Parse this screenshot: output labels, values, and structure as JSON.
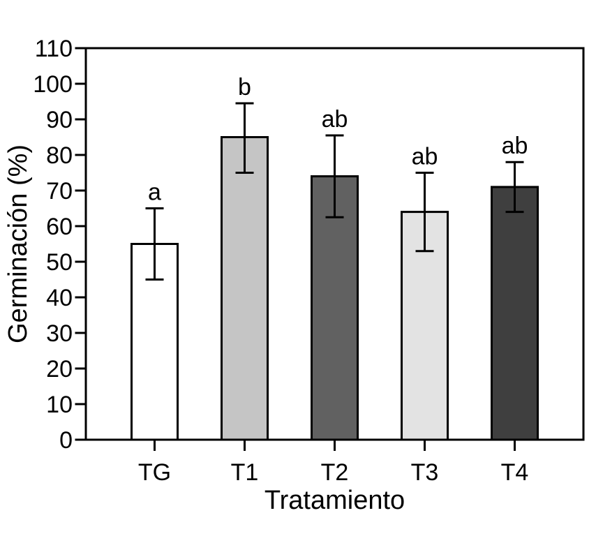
{
  "figure": {
    "background": "#ffffff",
    "axis_color": "#000000"
  },
  "chart_data": {
    "type": "bar",
    "title": "",
    "xlabel": "Tratamiento",
    "ylabel": "Germinación (%)",
    "categories": [
      "TG",
      "T1",
      "T2",
      "T3",
      "T4"
    ],
    "values": [
      55,
      85,
      74,
      64,
      71
    ],
    "error_upper": [
      65,
      94.5,
      85.5,
      75,
      78
    ],
    "error_lower": [
      45,
      75,
      62.5,
      53,
      64
    ],
    "sig_letters": [
      "a",
      "b",
      "ab",
      "ab",
      "ab"
    ],
    "bar_fills": [
      "#ffffff",
      "#c5c5c5",
      "#616161",
      "#e3e3e3",
      "#3f3f3f"
    ],
    "bar_outline": "#000000",
    "error_color": "#000000",
    "ylim": [
      0,
      110
    ],
    "ytick_step": 10,
    "yticks": [
      0,
      10,
      20,
      30,
      40,
      50,
      60,
      70,
      80,
      90,
      100,
      110
    ],
    "grid": false,
    "legend": "none"
  }
}
